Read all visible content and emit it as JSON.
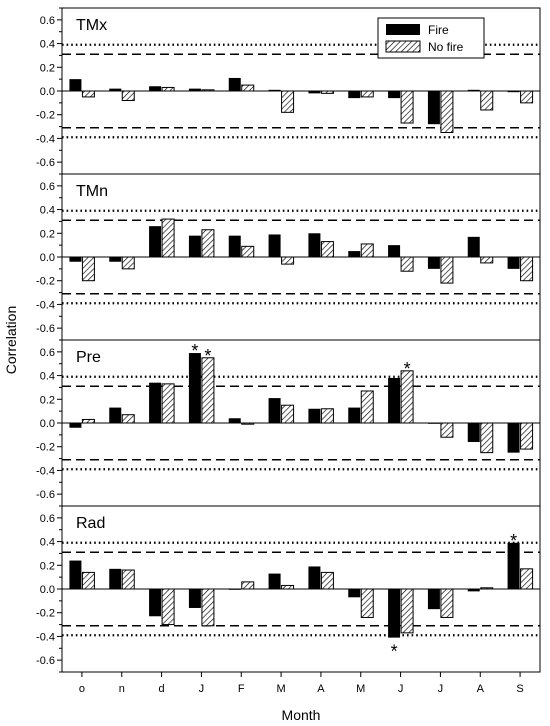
{
  "ylabel": "Correlation",
  "xlabel": "Month",
  "legend": {
    "fire": "Fire",
    "nofire": "No fire",
    "placement": "top-right"
  },
  "colors": {
    "fire": "#000000",
    "nofire_hatch": "#000000",
    "frame": "#000000"
  },
  "chart_data": [
    {
      "type": "bar",
      "title": "TMx",
      "categories": [
        "o",
        "n",
        "d",
        "J",
        "F",
        "M",
        "A",
        "M",
        "J",
        "J",
        "A",
        "S"
      ],
      "ylim": [
        -0.7,
        0.7
      ],
      "yticks": [
        "0.6",
        "0.4",
        "0.2",
        "0.0",
        "-0.2",
        "-0.4",
        "-0.6"
      ],
      "series": [
        {
          "name": "Fire",
          "values": [
            0.1,
            0.02,
            0.04,
            0.02,
            0.11,
            0.01,
            -0.02,
            -0.06,
            -0.06,
            -0.28,
            0.01,
            -0.01
          ]
        },
        {
          "name": "No fire",
          "values": [
            -0.05,
            -0.08,
            0.03,
            0.01,
            0.05,
            -0.18,
            -0.02,
            -0.05,
            -0.27,
            -0.35,
            -0.16,
            -0.1
          ]
        }
      ],
      "reference_lines": {
        "dashed": [
          0.31,
          -0.31
        ],
        "dotted": [
          0.39,
          -0.39
        ]
      },
      "annotations": []
    },
    {
      "type": "bar",
      "title": "TMn",
      "categories": [
        "o",
        "n",
        "d",
        "J",
        "F",
        "M",
        "A",
        "M",
        "J",
        "J",
        "A",
        "S"
      ],
      "ylim": [
        -0.7,
        0.7
      ],
      "yticks": [
        "0.6",
        "0.4",
        "0.2",
        "0.0",
        "-0.2",
        "-0.4",
        "-0.6"
      ],
      "series": [
        {
          "name": "Fire",
          "values": [
            -0.04,
            -0.04,
            0.26,
            0.18,
            0.18,
            0.19,
            0.2,
            0.05,
            0.1,
            -0.1,
            0.17,
            -0.1
          ]
        },
        {
          "name": "No fire",
          "values": [
            -0.2,
            -0.1,
            0.32,
            0.23,
            0.09,
            -0.06,
            0.13,
            0.11,
            -0.12,
            -0.22,
            -0.05,
            -0.2
          ]
        }
      ],
      "reference_lines": {
        "dashed": [
          0.31,
          -0.31
        ],
        "dotted": [
          0.39,
          -0.39
        ]
      },
      "annotations": []
    },
    {
      "type": "bar",
      "title": "Pre",
      "categories": [
        "o",
        "n",
        "d",
        "J",
        "F",
        "M",
        "A",
        "M",
        "J",
        "J",
        "A",
        "S"
      ],
      "ylim": [
        -0.7,
        0.7
      ],
      "yticks": [
        "0.6",
        "0.4",
        "0.2",
        "0.0",
        "-0.2",
        "-0.4",
        "-0.6"
      ],
      "series": [
        {
          "name": "Fire",
          "values": [
            -0.04,
            0.13,
            0.34,
            0.59,
            0.04,
            0.21,
            0.12,
            0.13,
            0.38,
            0.0,
            -0.16,
            -0.25
          ]
        },
        {
          "name": "No fire",
          "values": [
            0.03,
            0.07,
            0.33,
            0.55,
            -0.01,
            0.15,
            0.12,
            0.27,
            0.44,
            -0.12,
            -0.25,
            -0.22
          ]
        }
      ],
      "reference_lines": {
        "dashed": [
          0.31,
          -0.31
        ],
        "dotted": [
          0.39,
          -0.39
        ]
      },
      "annotations": [
        {
          "text": "*",
          "category": 3,
          "series": 0
        },
        {
          "text": "*",
          "category": 3,
          "series": 1
        },
        {
          "text": "*",
          "category": 8,
          "series": 1
        }
      ]
    },
    {
      "type": "bar",
      "title": "Rad",
      "categories": [
        "o",
        "n",
        "d",
        "J",
        "F",
        "M",
        "A",
        "M",
        "J",
        "J",
        "A",
        "S"
      ],
      "ylim": [
        -0.7,
        0.7
      ],
      "yticks": [
        "0.6",
        "0.4",
        "0.2",
        "0.0",
        "-0.2",
        "-0.4",
        "-0.6"
      ],
      "series": [
        {
          "name": "Fire",
          "values": [
            0.24,
            0.17,
            -0.23,
            -0.16,
            0.0,
            0.13,
            0.19,
            -0.07,
            -0.41,
            -0.17,
            -0.02,
            0.39
          ]
        },
        {
          "name": "No fire",
          "values": [
            0.14,
            0.16,
            -0.3,
            -0.31,
            0.06,
            0.03,
            0.14,
            -0.24,
            -0.37,
            -0.24,
            0.01,
            0.17
          ]
        }
      ],
      "reference_lines": {
        "dashed": [
          0.31,
          -0.31
        ],
        "dotted": [
          0.39,
          -0.39
        ]
      },
      "annotations": [
        {
          "text": "*",
          "category": 8,
          "series": 0
        },
        {
          "text": "*",
          "category": 11,
          "series": 0
        }
      ]
    }
  ]
}
